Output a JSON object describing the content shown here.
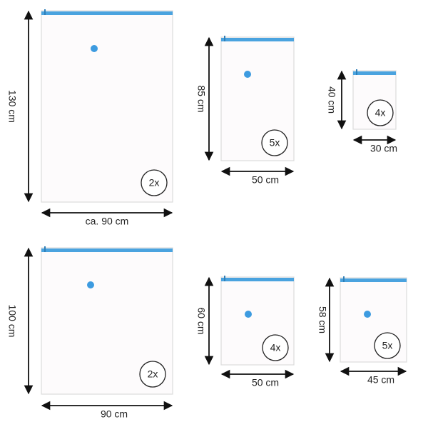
{
  "bags": [
    {
      "height": "130 cm",
      "width": "ca. 90 cm",
      "count": "2x"
    },
    {
      "height": "85 cm",
      "width": "50 cm",
      "count": "5x"
    },
    {
      "height": "40 cm",
      "width": "30 cm",
      "count": "4x"
    },
    {
      "height": "100 cm",
      "width": "90 cm",
      "count": "2x"
    },
    {
      "height": "60 cm",
      "width": "50 cm",
      "count": "4x"
    },
    {
      "height": "58 cm",
      "width": "45 cm",
      "count": "5x"
    }
  ]
}
